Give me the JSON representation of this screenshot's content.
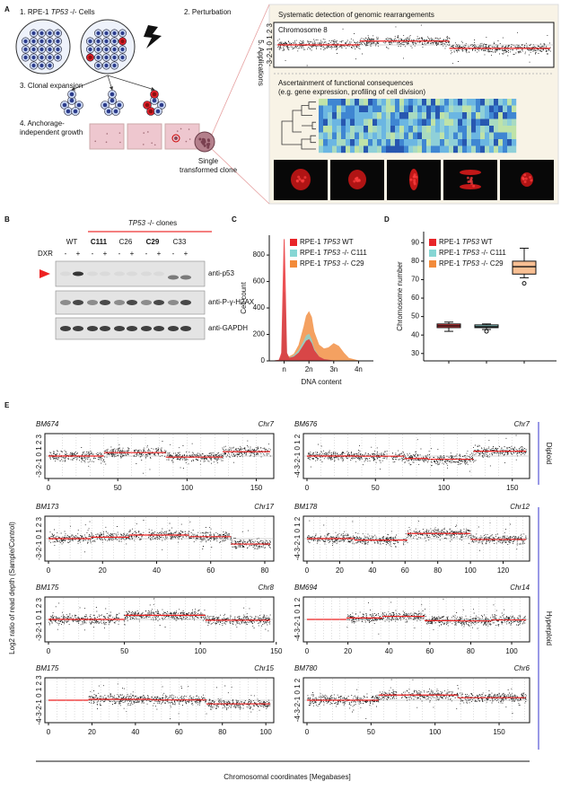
{
  "panel_a": {
    "label": "A",
    "step1": [
      "1. RPE-1 ",
      "TP53",
      " -/- Cells"
    ],
    "step2": "2. Perturbation",
    "step3": "3. Clonal expansion",
    "step4": [
      "4. Anchorage-",
      "independent growth"
    ],
    "clone": [
      "Single",
      "transformed clone"
    ],
    "step5": "5. Applications",
    "detection_title": "Systematic detection of genomic rearrangements",
    "chromosome": "Chromosome 8",
    "chromosome_yticks": "-3-2-1 0 1 2 3",
    "consequences_title": "Ascertainment of functional consequences",
    "consequences_subtitle": "(e.g. gene expression, profiling of cell division)"
  },
  "panel_b": {
    "label": "B",
    "clones_title": [
      "TP53",
      " -/- clones"
    ],
    "lanes": [
      "WT",
      "C111",
      "C26",
      "C29",
      "C33"
    ],
    "bold_lanes": [
      "C111",
      "C29"
    ],
    "treatment": "DXR",
    "treatment_signs": [
      "-",
      "+"
    ],
    "antibodies": [
      "anti-p53",
      "anti-P-γ-H2AX",
      "anti-GAPDH"
    ]
  },
  "legend": [
    [
      "RPE-1 ",
      "TP53",
      " WT"
    ],
    [
      "RPE-1 ",
      "TP53",
      " -/- C111"
    ],
    [
      "RPE-1 ",
      "TP53",
      " -/- C29"
    ]
  ],
  "colors": [
    "#e8262a",
    "#86d6d4",
    "#f28a3a"
  ],
  "panel_c": {
    "label": "C",
    "ylabel": "Cell count",
    "xlabel": "DNA content",
    "ylim": [
      0,
      950
    ],
    "yticks": [
      0,
      200,
      400,
      600,
      800
    ],
    "xlim": [
      0.4,
      4.6
    ],
    "xticks": [
      {
        "value": 1,
        "label": "n"
      },
      {
        "value": 2,
        "label": "2n"
      },
      {
        "value": 3,
        "label": "3n"
      },
      {
        "value": 4,
        "label": "4n"
      }
    ],
    "x": [
      0.6,
      0.8,
      0.9,
      0.95,
      1.0,
      1.05,
      1.1,
      1.2,
      1.4,
      1.6,
      1.8,
      1.9,
      2.0,
      2.1,
      2.2,
      2.4,
      2.6,
      2.8,
      3.0,
      3.2,
      3.4,
      3.6,
      4.0,
      4.4
    ],
    "series": [
      [
        0,
        5,
        60,
        500,
        920,
        500,
        60,
        20,
        30,
        60,
        120,
        150,
        160,
        130,
        80,
        30,
        10,
        5,
        0,
        0,
        0,
        0,
        0,
        0
      ],
      [
        0,
        5,
        40,
        300,
        520,
        320,
        60,
        20,
        40,
        80,
        150,
        190,
        200,
        160,
        90,
        30,
        10,
        5,
        0,
        0,
        0,
        0,
        0,
        0
      ],
      [
        0,
        3,
        20,
        120,
        200,
        130,
        40,
        30,
        50,
        120,
        260,
        340,
        370,
        330,
        220,
        120,
        90,
        100,
        130,
        110,
        60,
        20,
        0,
        0
      ]
    ]
  },
  "panel_d": {
    "label": "D",
    "ylabel": "Chromosome number",
    "ylim": [
      26,
      96
    ],
    "yticks": [
      30,
      40,
      50,
      60,
      70,
      80,
      90
    ],
    "boxes": [
      {
        "min": 42,
        "q1": 44,
        "median": 45,
        "q3": 46,
        "max": 47
      },
      {
        "min": 43,
        "q1": 44,
        "median": 44.5,
        "q3": 45.5,
        "max": 46,
        "outliers": [
          42
        ]
      },
      {
        "min": 71,
        "q1": 73,
        "median": 77,
        "q3": 80,
        "max": 87,
        "outliers": [
          68
        ]
      }
    ]
  },
  "panel_e": {
    "label": "E",
    "ylabel": "Log2 ratio of read depth (Sample/Control)",
    "xlabel": "Chromosomal coordinates [Megabases]",
    "groups": [
      "Diploid",
      "Hyperploid"
    ],
    "plots": [
      {
        "sample": "BM674",
        "chromosome": "Chr7",
        "yticks": "-3-2-1 0 1 2 3",
        "xlim": [
          0,
          160
        ],
        "xticks": [
          0,
          50,
          100,
          150
        ]
      },
      {
        "sample": "BM676",
        "chromosome": "Chr7",
        "yticks": "-4-3-2-1 0 1 2",
        "xlim": [
          0,
          160
        ],
        "xticks": [
          0,
          50,
          100,
          150
        ]
      },
      {
        "sample": "BM173",
        "chromosome": "Chr17",
        "yticks": "-3-2-1 0 1 2 3",
        "xlim": [
          0,
          82
        ],
        "xticks": [
          0,
          20,
          40,
          60,
          80
        ]
      },
      {
        "sample": "BM178",
        "chromosome": "Chr12",
        "yticks": "-4-3-2-1 0 1 2",
        "xlim": [
          0,
          134
        ],
        "xticks": [
          0,
          20,
          40,
          60,
          80,
          100,
          120
        ]
      },
      {
        "sample": "BM175",
        "chromosome": "Chr8",
        "yticks": "-3-2-1 0 1 2 3",
        "xlim": [
          0,
          146
        ],
        "xticks": [
          0,
          50,
          100,
          150
        ]
      },
      {
        "sample": "BM694",
        "chromosome": "Chr14",
        "yticks": "-4-3-2-1 0 1 2",
        "xlim": [
          0,
          107
        ],
        "xticks": [
          0,
          20,
          40,
          60,
          80,
          100
        ]
      },
      {
        "sample": "BM175",
        "chromosome": "Chr15",
        "yticks": "-4-3-2-1 0 1 2 3",
        "xlim": [
          0,
          102
        ],
        "xticks": [
          0,
          20,
          40,
          60,
          80,
          100
        ]
      },
      {
        "sample": "BM780",
        "chromosome": "Chr6",
        "yticks": "-4-3-2-1 0 1 2",
        "xlim": [
          0,
          171
        ],
        "xticks": [
          0,
          50,
          100,
          150
        ]
      }
    ]
  }
}
